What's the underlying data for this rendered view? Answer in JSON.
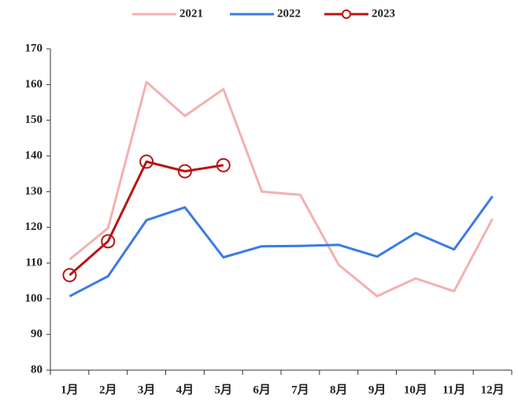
{
  "chart_data": {
    "type": "line",
    "categories": [
      "1月",
      "2月",
      "3月",
      "4月",
      "5月",
      "6月",
      "7月",
      "8月",
      "9月",
      "10月",
      "11月",
      "12月"
    ],
    "series": [
      {
        "name": "2021",
        "color": "#f4b0b0",
        "values": [
          111,
          119.8,
          160.7,
          151.2,
          158.7,
          130,
          129.1,
          109.5,
          100.7,
          105.7,
          102.1,
          122.4
        ]
      },
      {
        "name": "2022",
        "color": "#3a7be6",
        "values": [
          100.7,
          106.3,
          122,
          125.6,
          111.6,
          114.7,
          114.8,
          115.1,
          111.8,
          118.4,
          113.8,
          128.7
        ]
      },
      {
        "name": "2023",
        "color": "#b81414",
        "marker": "circle",
        "values": [
          106.6,
          116.1,
          138.4,
          135.7,
          137.4,
          null,
          null,
          null,
          null,
          null,
          null,
          null
        ]
      }
    ],
    "ylim": [
      80,
      170
    ],
    "yticks": [
      80,
      90,
      100,
      110,
      120,
      130,
      140,
      150,
      160,
      170
    ],
    "grid": false,
    "legend": "top"
  }
}
